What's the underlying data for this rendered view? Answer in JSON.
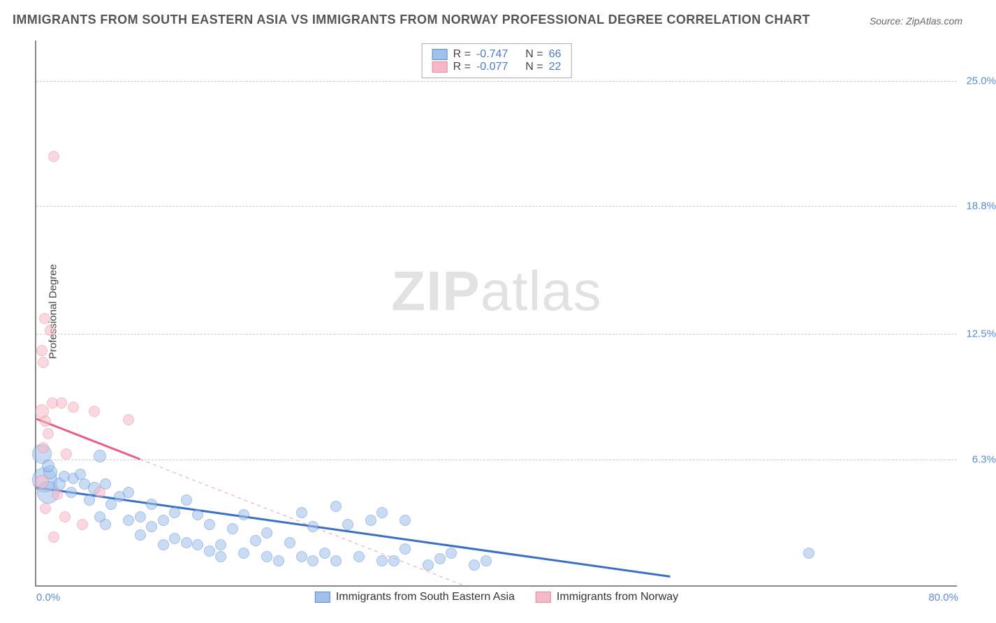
{
  "title": "IMMIGRANTS FROM SOUTH EASTERN ASIA VS IMMIGRANTS FROM NORWAY PROFESSIONAL DEGREE CORRELATION CHART",
  "source_prefix": "Source: ",
  "source": "ZipAtlas.com",
  "watermark_bold": "ZIP",
  "watermark_rest": "atlas",
  "ylabel": "Professional Degree",
  "chart": {
    "type": "scatter",
    "background_color": "#ffffff",
    "grid_color": "#cccccc",
    "axis_color": "#888888",
    "xlim": [
      0,
      80
    ],
    "ylim": [
      0,
      27
    ],
    "x_ticks": [
      {
        "value": 0,
        "label": "0.0%"
      },
      {
        "value": 80,
        "label": "80.0%"
      }
    ],
    "y_ticks": [
      {
        "value": 6.3,
        "label": "6.3%"
      },
      {
        "value": 12.5,
        "label": "12.5%"
      },
      {
        "value": 18.8,
        "label": "18.8%"
      },
      {
        "value": 25.0,
        "label": "25.0%"
      }
    ],
    "series": [
      {
        "id": "sea",
        "label": "Immigrants from South Eastern Asia",
        "fill_color": "#9fc1eb",
        "stroke_color": "#5b8bd4",
        "fill_opacity": 0.55,
        "stroke_width": 1.2,
        "trend": {
          "x1": 0,
          "y1": 4.9,
          "x2": 55,
          "y2": 0.5,
          "color": "#3a6fc7",
          "width": 3,
          "dash": null,
          "extra_dash": false
        },
        "r_value": "-0.747",
        "n_value": "66",
        "points": [
          {
            "x": 0.5,
            "y": 6.5,
            "r": 14
          },
          {
            "x": 0.7,
            "y": 5.2,
            "r": 18
          },
          {
            "x": 1.0,
            "y": 4.6,
            "r": 16
          },
          {
            "x": 1.2,
            "y": 5.6,
            "r": 10
          },
          {
            "x": 1.0,
            "y": 5.9,
            "r": 9
          },
          {
            "x": 5.5,
            "y": 6.4,
            "r": 9
          },
          {
            "x": 2.0,
            "y": 5.0,
            "r": 9
          },
          {
            "x": 2.4,
            "y": 5.4,
            "r": 8
          },
          {
            "x": 3.0,
            "y": 4.6,
            "r": 8
          },
          {
            "x": 3.2,
            "y": 5.3,
            "r": 8
          },
          {
            "x": 3.8,
            "y": 5.5,
            "r": 8
          },
          {
            "x": 4.2,
            "y": 5.0,
            "r": 8
          },
          {
            "x": 4.6,
            "y": 4.2,
            "r": 8
          },
          {
            "x": 5.0,
            "y": 4.8,
            "r": 9
          },
          {
            "x": 5.5,
            "y": 3.4,
            "r": 8
          },
          {
            "x": 6.0,
            "y": 5.0,
            "r": 8
          },
          {
            "x": 6.0,
            "y": 3.0,
            "r": 8
          },
          {
            "x": 6.5,
            "y": 4.0,
            "r": 8
          },
          {
            "x": 7.2,
            "y": 4.4,
            "r": 8
          },
          {
            "x": 8.0,
            "y": 3.2,
            "r": 8
          },
          {
            "x": 8.0,
            "y": 4.6,
            "r": 8
          },
          {
            "x": 9.0,
            "y": 3.4,
            "r": 8
          },
          {
            "x": 9.0,
            "y": 2.5,
            "r": 8
          },
          {
            "x": 10.0,
            "y": 4.0,
            "r": 8
          },
          {
            "x": 10.0,
            "y": 2.9,
            "r": 8
          },
          {
            "x": 11.0,
            "y": 3.2,
            "r": 8
          },
          {
            "x": 11.0,
            "y": 2.0,
            "r": 8
          },
          {
            "x": 12.0,
            "y": 3.6,
            "r": 8
          },
          {
            "x": 12.0,
            "y": 2.3,
            "r": 8
          },
          {
            "x": 13.0,
            "y": 4.2,
            "r": 8
          },
          {
            "x": 13.0,
            "y": 2.1,
            "r": 8
          },
          {
            "x": 14.0,
            "y": 3.5,
            "r": 8
          },
          {
            "x": 14.0,
            "y": 2.0,
            "r": 8
          },
          {
            "x": 15.0,
            "y": 3.0,
            "r": 8
          },
          {
            "x": 15.0,
            "y": 1.7,
            "r": 8
          },
          {
            "x": 16.0,
            "y": 2.0,
            "r": 8
          },
          {
            "x": 16.0,
            "y": 1.4,
            "r": 8
          },
          {
            "x": 17.0,
            "y": 2.8,
            "r": 8
          },
          {
            "x": 18.0,
            "y": 3.5,
            "r": 8
          },
          {
            "x": 18.0,
            "y": 1.6,
            "r": 8
          },
          {
            "x": 19.0,
            "y": 2.2,
            "r": 8
          },
          {
            "x": 20.0,
            "y": 1.4,
            "r": 8
          },
          {
            "x": 20.0,
            "y": 2.6,
            "r": 8
          },
          {
            "x": 21.0,
            "y": 1.2,
            "r": 8
          },
          {
            "x": 22.0,
            "y": 2.1,
            "r": 8
          },
          {
            "x": 23.0,
            "y": 1.4,
            "r": 8
          },
          {
            "x": 23.0,
            "y": 3.6,
            "r": 8
          },
          {
            "x": 24.0,
            "y": 1.2,
            "r": 8
          },
          {
            "x": 24.0,
            "y": 2.9,
            "r": 8
          },
          {
            "x": 25.0,
            "y": 1.6,
            "r": 8
          },
          {
            "x": 26.0,
            "y": 3.9,
            "r": 8
          },
          {
            "x": 26.0,
            "y": 1.2,
            "r": 8
          },
          {
            "x": 27.0,
            "y": 3.0,
            "r": 8
          },
          {
            "x": 28.0,
            "y": 1.4,
            "r": 8
          },
          {
            "x": 29.0,
            "y": 3.2,
            "r": 8
          },
          {
            "x": 30.0,
            "y": 1.2,
            "r": 8
          },
          {
            "x": 30.0,
            "y": 3.6,
            "r": 8
          },
          {
            "x": 31.0,
            "y": 1.2,
            "r": 8
          },
          {
            "x": 32.0,
            "y": 3.2,
            "r": 8
          },
          {
            "x": 32.0,
            "y": 1.8,
            "r": 8
          },
          {
            "x": 34.0,
            "y": 1.0,
            "r": 8
          },
          {
            "x": 35.0,
            "y": 1.3,
            "r": 8
          },
          {
            "x": 36.0,
            "y": 1.6,
            "r": 8
          },
          {
            "x": 38.0,
            "y": 1.0,
            "r": 8
          },
          {
            "x": 39.0,
            "y": 1.2,
            "r": 8
          },
          {
            "x": 67.0,
            "y": 1.6,
            "r": 8
          }
        ]
      },
      {
        "id": "norway",
        "label": "Immigrants from Norway",
        "fill_color": "#f6b9c6",
        "stroke_color": "#e88aa0",
        "fill_opacity": 0.55,
        "stroke_width": 1.2,
        "trend": {
          "x1": 0,
          "y1": 8.3,
          "x2": 9,
          "y2": 6.3,
          "color": "#e65f86",
          "width": 3,
          "dash": null,
          "extra_dash": true
        },
        "r_value": "-0.077",
        "n_value": "22",
        "points": [
          {
            "x": 1.5,
            "y": 21.2,
            "r": 8
          },
          {
            "x": 0.7,
            "y": 13.2,
            "r": 8
          },
          {
            "x": 1.2,
            "y": 12.6,
            "r": 8
          },
          {
            "x": 0.5,
            "y": 11.6,
            "r": 8
          },
          {
            "x": 0.6,
            "y": 11.0,
            "r": 8
          },
          {
            "x": 0.5,
            "y": 8.6,
            "r": 10
          },
          {
            "x": 1.4,
            "y": 9.0,
            "r": 8
          },
          {
            "x": 2.2,
            "y": 9.0,
            "r": 8
          },
          {
            "x": 0.8,
            "y": 8.1,
            "r": 8
          },
          {
            "x": 3.2,
            "y": 8.8,
            "r": 8
          },
          {
            "x": 5.0,
            "y": 8.6,
            "r": 8
          },
          {
            "x": 8.0,
            "y": 8.2,
            "r": 8
          },
          {
            "x": 0.6,
            "y": 6.8,
            "r": 8
          },
          {
            "x": 1.0,
            "y": 7.5,
            "r": 8
          },
          {
            "x": 2.6,
            "y": 6.5,
            "r": 8
          },
          {
            "x": 0.5,
            "y": 5.1,
            "r": 10
          },
          {
            "x": 1.8,
            "y": 4.5,
            "r": 8
          },
          {
            "x": 0.8,
            "y": 3.8,
            "r": 8
          },
          {
            "x": 2.5,
            "y": 3.4,
            "r": 8
          },
          {
            "x": 4.0,
            "y": 3.0,
            "r": 8
          },
          {
            "x": 1.5,
            "y": 2.4,
            "r": 8
          },
          {
            "x": 5.5,
            "y": 4.6,
            "r": 8
          }
        ]
      }
    ],
    "legend_top": {
      "r_label": "R =",
      "n_label": "N ="
    }
  }
}
